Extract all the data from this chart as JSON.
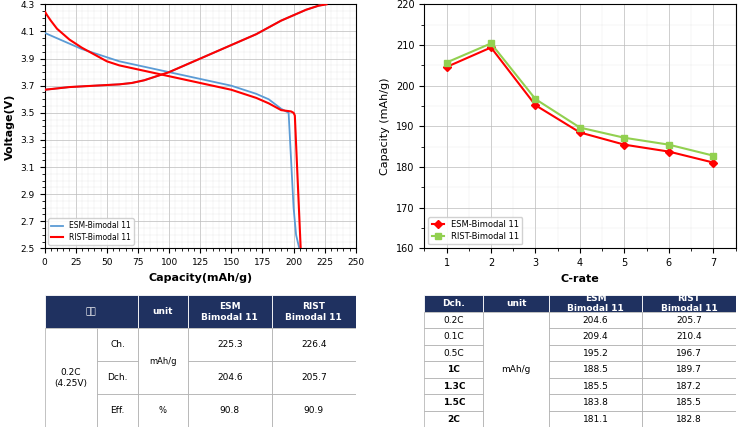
{
  "left_chart": {
    "xlabel": "Capacity(mAh/g)",
    "ylabel": "Voltage(V)",
    "xlim": [
      0,
      250
    ],
    "ylim": [
      2.5,
      4.3
    ],
    "xticks": [
      0,
      25,
      50,
      75,
      100,
      125,
      150,
      175,
      200,
      225,
      250
    ],
    "yticks": [
      2.5,
      2.7,
      2.9,
      3.1,
      3.3,
      3.5,
      3.7,
      3.9,
      4.1,
      4.3
    ],
    "esm_charge_x": [
      0,
      5,
      10,
      20,
      30,
      40,
      50,
      60,
      70,
      80,
      90,
      100,
      110,
      120,
      130,
      140,
      150,
      160,
      170,
      180,
      190,
      200,
      210,
      220,
      225.3
    ],
    "esm_charge_y": [
      3.67,
      3.675,
      3.68,
      3.69,
      3.695,
      3.7,
      3.705,
      3.71,
      3.72,
      3.74,
      3.77,
      3.8,
      3.84,
      3.88,
      3.92,
      3.96,
      4.0,
      4.04,
      4.08,
      4.13,
      4.18,
      4.22,
      4.26,
      4.29,
      4.3
    ],
    "esm_discharge_x": [
      0,
      10,
      20,
      30,
      40,
      50,
      60,
      70,
      80,
      90,
      100,
      110,
      120,
      130,
      140,
      150,
      160,
      170,
      180,
      190,
      196,
      200,
      202,
      204.6
    ],
    "esm_discharge_y": [
      4.09,
      4.05,
      4.01,
      3.97,
      3.94,
      3.91,
      3.88,
      3.86,
      3.84,
      3.82,
      3.8,
      3.78,
      3.76,
      3.74,
      3.72,
      3.7,
      3.67,
      3.64,
      3.6,
      3.53,
      3.5,
      2.8,
      2.6,
      2.5
    ],
    "rist_charge_x": [
      0,
      5,
      10,
      20,
      30,
      40,
      50,
      60,
      70,
      80,
      90,
      100,
      110,
      120,
      130,
      140,
      150,
      160,
      170,
      180,
      190,
      200,
      210,
      220,
      226.4
    ],
    "rist_charge_y": [
      3.67,
      3.675,
      3.68,
      3.69,
      3.695,
      3.7,
      3.705,
      3.71,
      3.72,
      3.74,
      3.77,
      3.8,
      3.84,
      3.88,
      3.92,
      3.96,
      4.0,
      4.04,
      4.08,
      4.13,
      4.18,
      4.22,
      4.26,
      4.29,
      4.3
    ],
    "rist_discharge_x": [
      0,
      2,
      5,
      10,
      20,
      30,
      40,
      50,
      60,
      70,
      80,
      90,
      100,
      110,
      120,
      130,
      140,
      150,
      160,
      170,
      180,
      190,
      198,
      200,
      201,
      205.7
    ],
    "rist_discharge_y": [
      4.25,
      4.22,
      4.18,
      4.12,
      4.04,
      3.98,
      3.93,
      3.88,
      3.85,
      3.83,
      3.81,
      3.79,
      3.77,
      3.75,
      3.73,
      3.71,
      3.69,
      3.67,
      3.64,
      3.61,
      3.57,
      3.52,
      3.51,
      3.5,
      3.48,
      2.5
    ],
    "esm_color": "#5b9bd5",
    "rist_color": "#ff0000",
    "legend_esm": "ESM-Bimodal 11",
    "legend_rist": "RIST-Bimodal 11"
  },
  "right_chart": {
    "xlabel": "C-rate",
    "ylabel": "Capacity (mAh/g)",
    "xlim": [
      0.5,
      7.5
    ],
    "ylim": [
      160,
      220
    ],
    "xticks": [
      1,
      2,
      3,
      4,
      5,
      6,
      7
    ],
    "yticks": [
      160,
      170,
      180,
      190,
      200,
      210,
      220
    ],
    "esm_x": [
      1,
      2,
      3,
      4,
      5,
      6,
      7
    ],
    "esm_y": [
      204.6,
      209.4,
      195.2,
      188.5,
      185.5,
      183.8,
      181.1
    ],
    "rist_x": [
      1,
      2,
      3,
      4,
      5,
      6,
      7
    ],
    "rist_y": [
      205.7,
      210.4,
      196.7,
      189.7,
      187.2,
      185.5,
      182.8
    ],
    "esm_color": "#ff0000",
    "rist_color": "#92d050",
    "legend_esm": "ESM-Bimodal 11",
    "legend_rist": "RIST-Bimodal 11"
  },
  "left_table": {
    "header_color": "#1f3160",
    "header_text_color": "#ffffff",
    "header_label": "항목",
    "row0_label": "0.2C\n(4.25V)",
    "rows": [
      [
        "Ch.",
        "mAh/g",
        "225.3",
        "226.4"
      ],
      [
        "Dch.",
        "mAh/g",
        "204.6",
        "205.7"
      ],
      [
        "Eff.",
        "%",
        "90.8",
        "90.9"
      ]
    ]
  },
  "right_table": {
    "header_color": "#1f3160",
    "header_text_color": "#ffffff",
    "col_header_dch": "Dch.",
    "col_header_unit": "unit",
    "col_header_esm": "ESM\nBimodal 11",
    "col_header_rist": "RIST\nBimodal 11",
    "rows": [
      [
        "0.2C",
        "204.6",
        "205.7"
      ],
      [
        "0.1C",
        "209.4",
        "210.4"
      ],
      [
        "0.5C",
        "195.2",
        "196.7"
      ],
      [
        "1C",
        "188.5",
        "189.7"
      ],
      [
        "1.3C",
        "185.5",
        "187.2"
      ],
      [
        "1.5C",
        "183.8",
        "185.5"
      ],
      [
        "2C",
        "181.1",
        "182.8"
      ]
    ],
    "unit": "mAh/g"
  }
}
